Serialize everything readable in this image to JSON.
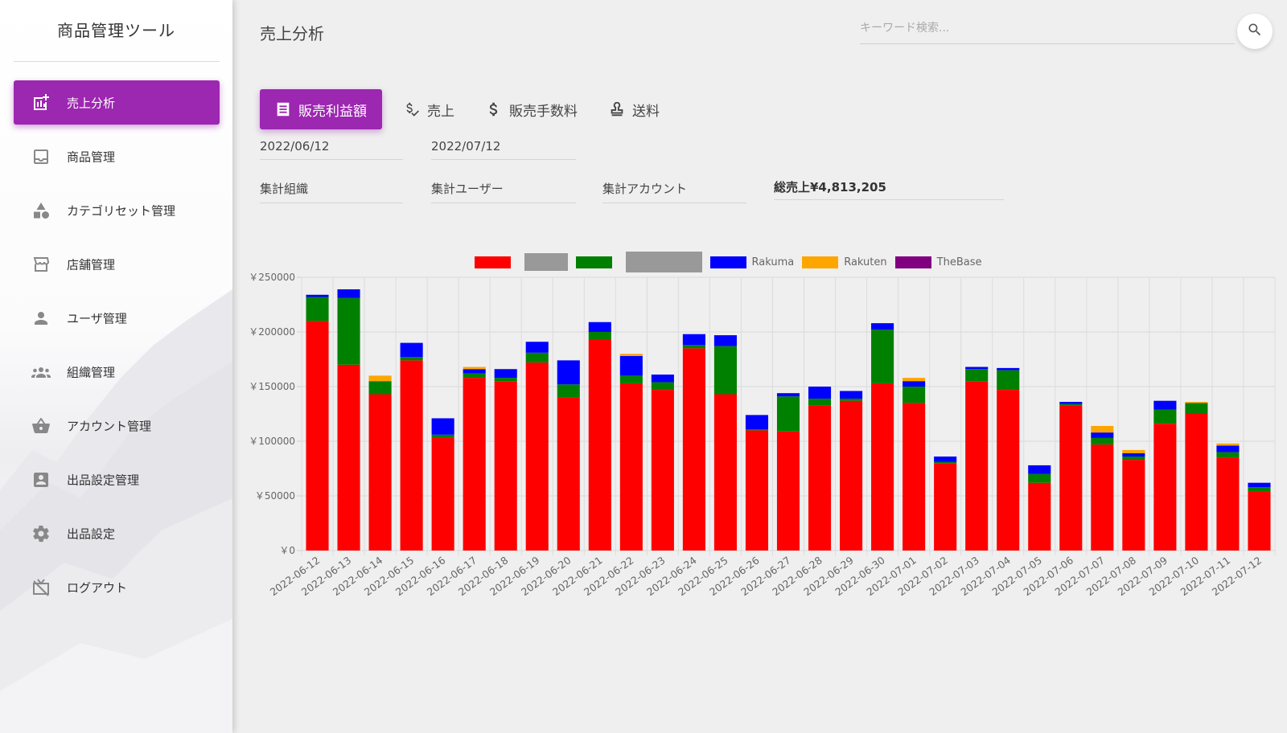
{
  "app": {
    "title": "商品管理ツール"
  },
  "sidebar": {
    "items": [
      {
        "label": "売上分析",
        "icon": "chart-add-icon",
        "active": true
      },
      {
        "label": "商品管理",
        "icon": "inbox-icon",
        "active": false
      },
      {
        "label": "カテゴリセット管理",
        "icon": "category-shapes-icon",
        "active": false
      },
      {
        "label": "店舗管理",
        "icon": "store-icon",
        "active": false
      },
      {
        "label": "ユーザ管理",
        "icon": "person-icon",
        "active": false
      },
      {
        "label": "組織管理",
        "icon": "group-icon",
        "active": false
      },
      {
        "label": "アカウント管理",
        "icon": "basket-icon",
        "active": false
      },
      {
        "label": "出品設定管理",
        "icon": "contact-card-icon",
        "active": false
      },
      {
        "label": "出品設定",
        "icon": "gear-icon",
        "active": false
      },
      {
        "label": "ログアウト",
        "icon": "tv-off-icon",
        "active": false
      }
    ]
  },
  "header": {
    "title": "売上分析",
    "search": {
      "placeholder": "キーワード検索..."
    }
  },
  "tabs": [
    {
      "label": "販売利益額",
      "icon": "list-icon",
      "active": true
    },
    {
      "label": "売上",
      "icon": "dollar-check-icon",
      "active": false
    },
    {
      "label": "販売手数料",
      "icon": "dollar-icon",
      "active": false
    },
    {
      "label": "送料",
      "icon": "stamp-icon",
      "active": false
    }
  ],
  "filters": {
    "start_date": "2022/06/12",
    "end_date": "2022/07/12",
    "organization": "集計組織",
    "user": "集計ユーザー",
    "account": "集計アカウント",
    "total_label": "総売上¥4,813,205"
  },
  "colors": {
    "accent": "#9c27b0"
  },
  "chart_data": {
    "type": "bar",
    "stacked": true,
    "title": "",
    "xlabel": "",
    "ylabel": "",
    "ylim": [
      0,
      250000
    ],
    "yticks": [
      0,
      50000,
      100000,
      150000,
      200000,
      250000
    ],
    "ytick_labels": [
      "￥0",
      "￥50000",
      "￥100000",
      "￥150000",
      "￥200000",
      "￥250000"
    ],
    "categories": [
      "2022-06-12",
      "2022-06-13",
      "2022-06-14",
      "2022-06-15",
      "2022-06-16",
      "2022-06-17",
      "2022-06-18",
      "2022-06-19",
      "2022-06-20",
      "2022-06-21",
      "2022-06-22",
      "2022-06-23",
      "2022-06-24",
      "2022-06-25",
      "2022-06-26",
      "2022-06-27",
      "2022-06-28",
      "2022-06-29",
      "2022-06-30",
      "2022-07-01",
      "2022-07-02",
      "2022-07-03",
      "2022-07-04",
      "2022-07-05",
      "2022-07-06",
      "2022-07-07",
      "2022-07-08",
      "2022-07-09",
      "2022-07-10",
      "2022-07-11",
      "2022-07-12"
    ],
    "series": [
      {
        "name": "",
        "color": "#ff0000",
        "values": [
          210000,
          170000,
          143000,
          174000,
          103000,
          158000,
          155000,
          172000,
          140000,
          193000,
          153000,
          147000,
          185000,
          143000,
          110000,
          109000,
          133000,
          137000,
          153000,
          135000,
          80000,
          155000,
          147000,
          62000,
          133000,
          97000,
          83000,
          116000,
          125000,
          85000,
          54000
        ]
      },
      {
        "name": "",
        "color": "#999999",
        "values": [
          0,
          0,
          0,
          0,
          0,
          0,
          0,
          0,
          0,
          0,
          0,
          0,
          0,
          0,
          0,
          0,
          0,
          0,
          0,
          0,
          0,
          0,
          0,
          0,
          0,
          0,
          0,
          0,
          0,
          0,
          0
        ]
      },
      {
        "name": "",
        "color": "#008000",
        "values": [
          22000,
          61000,
          12000,
          3000,
          3000,
          4000,
          3000,
          9000,
          12000,
          7000,
          7000,
          7000,
          3000,
          44000,
          1000,
          32000,
          6000,
          2000,
          49000,
          15000,
          1000,
          11000,
          18000,
          8000,
          1000,
          6000,
          3000,
          13000,
          10000,
          5000,
          4000
        ]
      },
      {
        "name": "",
        "color": "#999999",
        "values": [
          0,
          0,
          0,
          0,
          0,
          0,
          0,
          0,
          0,
          0,
          0,
          0,
          0,
          0,
          0,
          0,
          0,
          0,
          0,
          0,
          0,
          0,
          0,
          0,
          0,
          0,
          0,
          0,
          0,
          0,
          0
        ]
      },
      {
        "name": "Rakuma",
        "color": "#0000ff",
        "values": [
          2000,
          8000,
          0,
          13000,
          15000,
          4000,
          8000,
          10000,
          22000,
          9000,
          18000,
          7000,
          10000,
          10000,
          13000,
          3000,
          11000,
          7000,
          6000,
          5000,
          5000,
          2000,
          2000,
          8000,
          2000,
          5000,
          3000,
          8000,
          0,
          6000,
          4000
        ]
      },
      {
        "name": "Rakuten",
        "color": "#ffa500",
        "values": [
          0,
          0,
          5000,
          0,
          0,
          2000,
          0,
          0,
          0,
          0,
          2000,
          0,
          0,
          0,
          0,
          0,
          0,
          0,
          0,
          3000,
          0,
          0,
          0,
          0,
          0,
          6000,
          3000,
          0,
          1000,
          2000,
          0
        ]
      },
      {
        "name": "TheBase",
        "color": "#800080",
        "values": [
          0,
          0,
          0,
          0,
          0,
          0,
          0,
          0,
          0,
          0,
          0,
          0,
          0,
          0,
          0,
          0,
          0,
          0,
          0,
          0,
          0,
          0,
          0,
          0,
          0,
          0,
          0,
          0,
          0,
          0,
          0
        ]
      }
    ],
    "legend_position": "top-center",
    "grid": true
  }
}
